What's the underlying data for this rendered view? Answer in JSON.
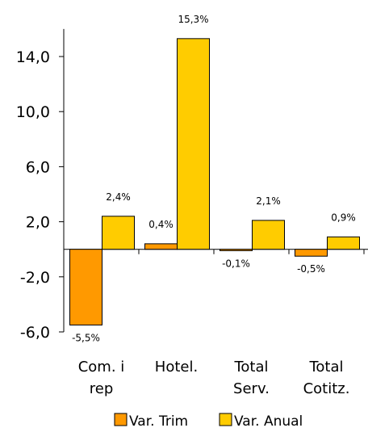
{
  "chart_data": {
    "type": "bar",
    "title": "",
    "xlabel": "",
    "ylabel": "",
    "ylim": [
      -6.0,
      16.0
    ],
    "yticks": [
      -6.0,
      -2.0,
      2.0,
      6.0,
      10.0,
      14.0
    ],
    "ytick_labels": [
      "-6,0",
      "-2,0",
      "2,0",
      "6,0",
      "10,0",
      "14,0"
    ],
    "grid": false,
    "legend_position": "bottom",
    "categories": [
      [
        "Com. i",
        "rep"
      ],
      [
        "Hotel."
      ],
      [
        "Total",
        "Serv."
      ],
      [
        "Total",
        "Cotitz."
      ]
    ],
    "series": [
      {
        "name": "Var. Trim",
        "color": "#ff9900",
        "values": [
          -5.5,
          0.4,
          -0.1,
          -0.5
        ],
        "labels": [
          "-5,5%",
          "0,4%",
          "-0,1%",
          "-0,5%"
        ]
      },
      {
        "name": "Var. Anual",
        "color": "#ffcc00",
        "values": [
          2.4,
          15.3,
          2.1,
          0.9
        ],
        "labels": [
          "2,4%",
          "15,3%",
          "2,1%",
          "0,9%"
        ]
      }
    ]
  }
}
